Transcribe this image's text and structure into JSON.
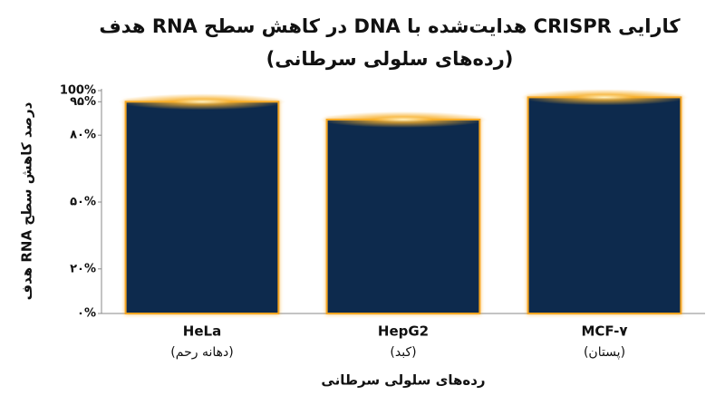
{
  "chart_data": {
    "type": "bar",
    "title": [
      "کارایی CRISPR هدایت‌شده با DNA در کاهش سطح RNA هدف",
      "(رده‌های سلولی سرطانی)"
    ],
    "y_label": "درصد کاهش سطح RNA هدف",
    "x_label": "رده‌های سلولی سرطانی",
    "categories": [
      [
        "HeLa",
        "(دهانه رحم)"
      ],
      [
        "HepG2",
        "(کبد)"
      ],
      [
        "MCF-۷",
        "(پستان)"
      ]
    ],
    "values": [
      95,
      87,
      97
    ],
    "color": "#0d2a4d",
    "edge_color": "#f5a623",
    "ylim": [
      0,
      100
    ],
    "yticks": [
      {
        "value": 0,
        "label": "۰%"
      },
      {
        "value": 20,
        "label": "۲۰%"
      },
      {
        "value": 50,
        "label": "۵۰%"
      },
      {
        "value": 80,
        "label": "۸۰%"
      },
      {
        "value": 95,
        "label": "۹۵%"
      },
      {
        "value": 100,
        "label": "100%"
      }
    ],
    "grid": false
  }
}
